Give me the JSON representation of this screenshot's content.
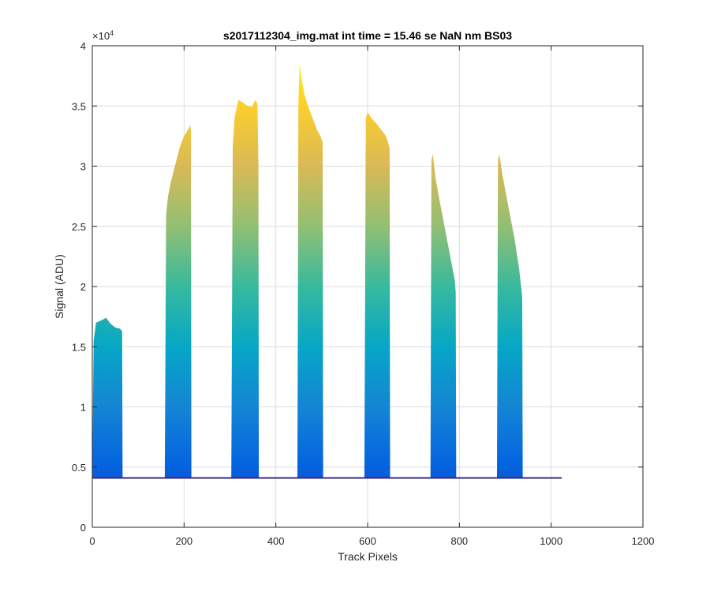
{
  "colors": {
    "background": "#ffffff",
    "axes": "#262626",
    "grid": "#dcdcdc",
    "colormap": [
      "#352a87",
      "#0363e1",
      "#1485d4",
      "#06a7c6",
      "#38b99e",
      "#92bf73",
      "#d9ba56",
      "#fcce2e",
      "#f9fb0e"
    ]
  },
  "chart_data": {
    "type": "area",
    "title": "s2017112304_img.mat int time = 15.46 se  NaN nm BS03",
    "xlabel": "Track Pixels",
    "ylabel": "Signal (ADU)",
    "xlim": [
      0,
      1200
    ],
    "ylim": [
      0,
      40000
    ],
    "xticks": [
      0,
      200,
      400,
      600,
      800,
      1000,
      1200
    ],
    "yticks": [
      0,
      5000,
      10000,
      15000,
      20000,
      25000,
      30000,
      35000,
      40000
    ],
    "xtick_labels": [
      "0",
      "200",
      "400",
      "600",
      "800",
      "1000",
      "1200"
    ],
    "ytick_labels": [
      "0",
      "0.5",
      "1",
      "1.5",
      "2",
      "2.5",
      "3",
      "3.5",
      "4"
    ],
    "y_exponent_label": "×10",
    "y_exponent_power": "4",
    "grid": true,
    "baseline": 4100,
    "data_x_range": [
      0,
      1023
    ],
    "peaks": [
      {
        "x_start": 0,
        "x_end": 65,
        "profile": [
          [
            0,
            4500
          ],
          [
            3,
            15500
          ],
          [
            8,
            17000
          ],
          [
            20,
            17200
          ],
          [
            30,
            17400
          ],
          [
            40,
            16900
          ],
          [
            50,
            16600
          ],
          [
            60,
            16500
          ],
          [
            65,
            16300
          ],
          [
            66,
            4100
          ]
        ]
      },
      {
        "x_start": 158,
        "x_end": 215,
        "profile": [
          [
            158,
            4300
          ],
          [
            161,
            26000
          ],
          [
            165,
            27500
          ],
          [
            170,
            28500
          ],
          [
            180,
            30000
          ],
          [
            190,
            31500
          ],
          [
            200,
            32500
          ],
          [
            208,
            33000
          ],
          [
            213,
            33400
          ],
          [
            215,
            33000
          ],
          [
            216,
            4100
          ]
        ]
      },
      {
        "x_start": 303,
        "x_end": 362,
        "profile": [
          [
            303,
            4300
          ],
          [
            306,
            31500
          ],
          [
            310,
            34000
          ],
          [
            318,
            35500
          ],
          [
            328,
            35300
          ],
          [
            338,
            35000
          ],
          [
            348,
            34900
          ],
          [
            355,
            35500
          ],
          [
            360,
            35200
          ],
          [
            362,
            30000
          ],
          [
            363,
            4100
          ]
        ]
      },
      {
        "x_start": 447,
        "x_end": 502,
        "profile": [
          [
            447,
            4300
          ],
          [
            449,
            35000
          ],
          [
            452,
            38600
          ],
          [
            455,
            37500
          ],
          [
            462,
            36000
          ],
          [
            470,
            35000
          ],
          [
            480,
            34000
          ],
          [
            490,
            33000
          ],
          [
            497,
            32500
          ],
          [
            502,
            32000
          ],
          [
            503,
            4100
          ]
        ]
      },
      {
        "x_start": 593,
        "x_end": 648,
        "profile": [
          [
            593,
            4300
          ],
          [
            596,
            34000
          ],
          [
            600,
            34500
          ],
          [
            608,
            34000
          ],
          [
            620,
            33500
          ],
          [
            630,
            33000
          ],
          [
            640,
            32500
          ],
          [
            648,
            31500
          ],
          [
            649,
            4100
          ]
        ]
      },
      {
        "x_start": 737,
        "x_end": 792,
        "profile": [
          [
            737,
            4300
          ],
          [
            739,
            30500
          ],
          [
            742,
            31000
          ],
          [
            748,
            29000
          ],
          [
            755,
            27500
          ],
          [
            765,
            25500
          ],
          [
            775,
            23500
          ],
          [
            785,
            21500
          ],
          [
            790,
            20500
          ],
          [
            792,
            19500
          ],
          [
            793,
            4100
          ]
        ]
      },
      {
        "x_start": 882,
        "x_end": 937,
        "profile": [
          [
            882,
            4300
          ],
          [
            884,
            30500
          ],
          [
            887,
            31000
          ],
          [
            893,
            29500
          ],
          [
            900,
            28000
          ],
          [
            910,
            26000
          ],
          [
            920,
            24000
          ],
          [
            930,
            21500
          ],
          [
            936,
            19500
          ],
          [
            937,
            19000
          ],
          [
            938,
            4100
          ]
        ]
      }
    ]
  }
}
